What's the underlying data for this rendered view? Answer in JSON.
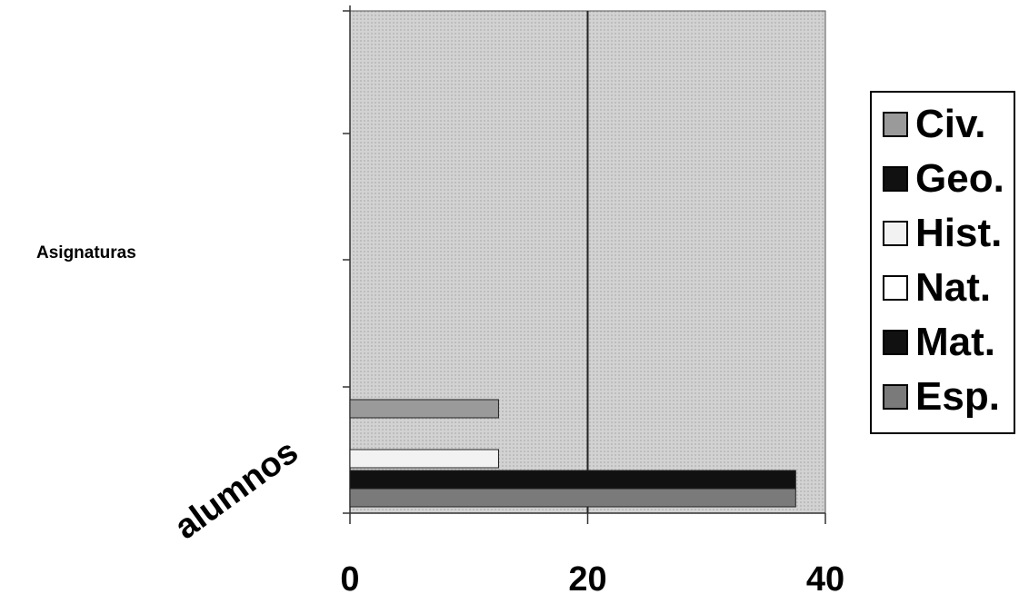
{
  "chart_data": {
    "type": "bar",
    "orientation": "horizontal",
    "title": "",
    "xlabel": "alumnos",
    "ylabel": "Asignaturas",
    "xlim": [
      0,
      40
    ],
    "x_ticks": [
      "0",
      "20",
      "40"
    ],
    "grid": true,
    "legend_position": "right",
    "categories": [
      "Esp.",
      "Mat.",
      "Nat.",
      "Hist.",
      "Geo.",
      "Civ."
    ],
    "values": [
      37.5,
      37.5,
      12.5,
      12.5,
      0,
      12.5
    ],
    "colors": {
      "Civ.": "#9a9a9a",
      "Geo.": "#111111",
      "Hist.": "#f2f2f2",
      "Nat.": "#ffffff",
      "Mat.": "#111111",
      "Esp.": "#7a7a7a"
    },
    "plot_background": "#c8c8c8",
    "legend": [
      "Civ.",
      "Geo.",
      "Hist.",
      "Nat.",
      "Mat.",
      "Esp."
    ]
  }
}
